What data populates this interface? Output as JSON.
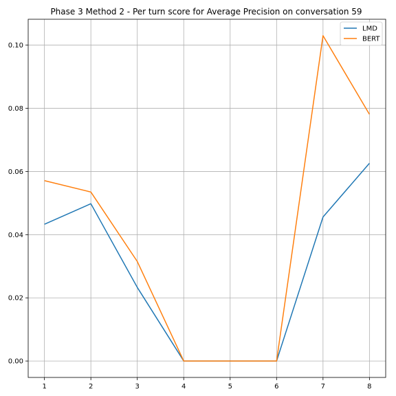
{
  "chart_data": {
    "type": "line",
    "title": "Phase 3 Method 2 - Per turn score for Average Precision on conversation 59",
    "xlabel": "",
    "ylabel": "",
    "x": [
      1,
      2,
      3,
      4,
      5,
      6,
      7,
      8
    ],
    "xlim": [
      0.65,
      8.35
    ],
    "ylim": [
      -0.0052,
      0.1082
    ],
    "xticks": [
      1,
      2,
      3,
      4,
      5,
      6,
      7,
      8
    ],
    "yticks": [
      0.0,
      0.02,
      0.04,
      0.06,
      0.08,
      0.1
    ],
    "ytick_labels": [
      "0.00",
      "0.02",
      "0.04",
      "0.06",
      "0.08",
      "0.10"
    ],
    "grid": true,
    "legend_position": "top-right",
    "series": [
      {
        "name": "LMD",
        "color": "#1f77b4",
        "values": [
          0.0433,
          0.0498,
          0.0233,
          0.0,
          0.0,
          0.0,
          0.0456,
          0.0626
        ]
      },
      {
        "name": "BERT",
        "color": "#ff7f0e",
        "values": [
          0.0571,
          0.0535,
          0.0315,
          0.0,
          0.0,
          0.0,
          0.103,
          0.0781
        ]
      }
    ]
  }
}
